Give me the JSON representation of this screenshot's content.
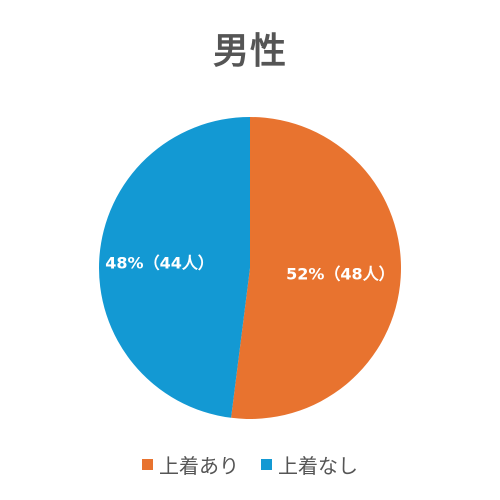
{
  "chart_data": {
    "type": "pie",
    "title": "男性",
    "slices": [
      {
        "label": "上着あり",
        "percent": 52,
        "count": 48,
        "data_label": "52%（48人）",
        "color": "#E8732F"
      },
      {
        "label": "上着なし",
        "percent": 48,
        "count": 44,
        "data_label": "48%（44人）",
        "color": "#1399D3"
      }
    ],
    "legend_position": "bottom"
  }
}
